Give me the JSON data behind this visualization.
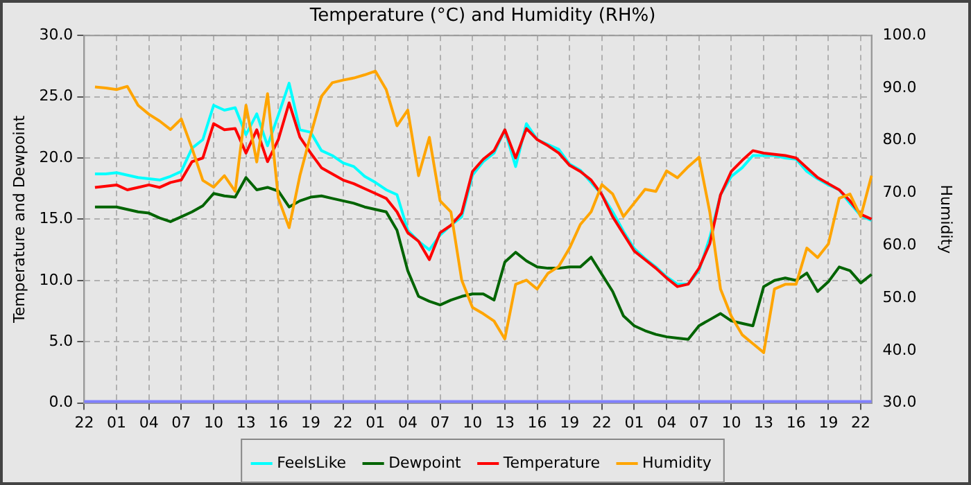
{
  "chart_data": {
    "type": "line",
    "title": "Temperature (°C) and Humidity (RH%)",
    "ylabel": "Temperature and Dewpoint",
    "y2label": "Humidity",
    "categories": [
      "22",
      null,
      null,
      "01",
      null,
      null,
      "04",
      null,
      null,
      "07",
      null,
      null,
      "10",
      null,
      null,
      "13",
      null,
      null,
      "16",
      null,
      null,
      "19",
      null,
      null,
      "22",
      null,
      null,
      "01",
      null,
      null,
      "04",
      null,
      null,
      "07",
      null,
      null,
      "10",
      null,
      null,
      "13",
      null,
      null,
      "16",
      null,
      null,
      "19",
      null,
      null,
      "22",
      null,
      null,
      "01",
      null,
      null,
      "04",
      null,
      null,
      "07",
      null,
      null,
      "10",
      null,
      null,
      "13",
      null,
      null,
      "16",
      null,
      null,
      "19",
      null,
      null,
      "22",
      null
    ],
    "ylim": [
      0,
      30
    ],
    "yticks": [
      {
        "value": 0,
        "label": "0.0"
      },
      {
        "value": 5,
        "label": "5.0"
      },
      {
        "value": 10,
        "label": "10.0"
      },
      {
        "value": 15,
        "label": "15.0"
      },
      {
        "value": 20,
        "label": "20.0"
      },
      {
        "value": 25,
        "label": "25.0"
      },
      {
        "value": 30,
        "label": "30.0"
      }
    ],
    "y2lim": [
      30,
      100
    ],
    "y2ticks": [
      {
        "value": 30,
        "label": "30.0"
      },
      {
        "value": 40,
        "label": "40.0"
      },
      {
        "value": 50,
        "label": "50.0"
      },
      {
        "value": 60,
        "label": "60.0"
      },
      {
        "value": 70,
        "label": "70.0"
      },
      {
        "value": 80,
        "label": "80.0"
      },
      {
        "value": 90,
        "label": "90.0"
      },
      {
        "value": 100,
        "label": "100.0"
      }
    ],
    "grid": true,
    "legend": "bottom",
    "marker": "none",
    "line_style": "solid",
    "ref_lines": [
      {
        "axis": "y",
        "value": 0,
        "color": "#8080ff"
      }
    ],
    "series": [
      {
        "name": "FeelsLike",
        "color": "#00ffff",
        "values": [
          null,
          18.7,
          18.7,
          18.8,
          18.6,
          18.4,
          18.3,
          18.2,
          18.5,
          18.9,
          20.8,
          21.5,
          24.3,
          23.9,
          24.1,
          21.9,
          23.6,
          21.0,
          23.5,
          26.1,
          22.3,
          22.1,
          20.6,
          20.2,
          19.6,
          19.3,
          18.5,
          18.0,
          17.4,
          17.0,
          14.1,
          13.2,
          12.5,
          13.7,
          14.5,
          15.2,
          18.6,
          19.7,
          20.4,
          22.3,
          19.3,
          22.8,
          21.5,
          21.1,
          20.7,
          19.5,
          19.0,
          18.0,
          17.0,
          15.6,
          14.0,
          12.6,
          11.8,
          11.1,
          10.3,
          9.7,
          9.7,
          10.8,
          13.5,
          17.0,
          18.5,
          19.2,
          20.2,
          20.2,
          20.2,
          20.0,
          19.9,
          18.9,
          18.3,
          17.8,
          17.4,
          16.3,
          15.3,
          14.9
        ]
      },
      {
        "name": "Dewpoint",
        "color": "#006400",
        "values": [
          null,
          16.0,
          16.0,
          16.0,
          15.8,
          15.6,
          15.5,
          15.1,
          14.8,
          15.2,
          15.6,
          16.1,
          17.1,
          16.9,
          16.8,
          18.4,
          17.4,
          17.6,
          17.3,
          16.0,
          16.5,
          16.8,
          16.9,
          16.7,
          16.5,
          16.3,
          16.0,
          15.8,
          15.6,
          14.1,
          10.8,
          8.7,
          8.3,
          8.0,
          8.4,
          8.7,
          8.9,
          8.9,
          8.4,
          11.5,
          12.3,
          11.6,
          11.1,
          11.0,
          11.0,
          11.1,
          11.1,
          11.9,
          10.5,
          9.1,
          7.1,
          6.3,
          5.9,
          5.6,
          5.4,
          5.3,
          5.2,
          6.3,
          6.8,
          7.3,
          6.7,
          6.5,
          6.3,
          9.5,
          10.0,
          10.2,
          10.0,
          10.6,
          9.1,
          9.9,
          11.1,
          10.8,
          9.8,
          10.5
        ]
      },
      {
        "name": "Temperature",
        "color": "#ff0000",
        "values": [
          null,
          17.6,
          17.7,
          17.8,
          17.4,
          17.6,
          17.8,
          17.6,
          18.0,
          18.2,
          19.7,
          20.0,
          22.8,
          22.3,
          22.4,
          20.4,
          22.3,
          19.7,
          21.5,
          24.5,
          21.7,
          20.4,
          19.2,
          18.7,
          18.2,
          17.9,
          17.5,
          17.1,
          16.7,
          15.6,
          13.9,
          13.2,
          11.7,
          13.9,
          14.5,
          15.5,
          18.9,
          19.9,
          20.6,
          22.3,
          20.0,
          22.4,
          21.5,
          21.0,
          20.4,
          19.4,
          18.9,
          18.2,
          17.0,
          15.2,
          13.8,
          12.4,
          11.7,
          11.0,
          10.2,
          9.5,
          9.7,
          11.0,
          13.0,
          17.0,
          18.9,
          19.8,
          20.6,
          20.4,
          20.3,
          20.2,
          20.0,
          19.2,
          18.4,
          17.9,
          17.4,
          16.5,
          15.4,
          15.0
        ]
      },
      {
        "name": "Humidity",
        "color": "#ffa500",
        "axis": "y2",
        "values": [
          null,
          90.2,
          90.0,
          89.7,
          90.3,
          86.7,
          85.0,
          83.7,
          82.1,
          84.1,
          78.5,
          72.4,
          71.1,
          73.3,
          70.3,
          86.7,
          75.9,
          88.9,
          69.0,
          63.4,
          73.3,
          81.1,
          88.4,
          91.0,
          91.5,
          91.9,
          92.5,
          93.2,
          89.7,
          82.8,
          85.8,
          73.3,
          80.6,
          68.5,
          66.4,
          53.4,
          48.2,
          47.0,
          45.6,
          42.2,
          52.6,
          53.4,
          51.7,
          54.7,
          56.0,
          59.5,
          64.0,
          66.4,
          71.6,
          69.8,
          65.5,
          68.1,
          70.7,
          70.3,
          74.2,
          72.9,
          75.0,
          76.8,
          66.4,
          51.7,
          46.5,
          43.0,
          41.3,
          39.6,
          51.7,
          52.6,
          52.6,
          59.5,
          57.7,
          60.3,
          69.0,
          69.8,
          65.5,
          73.3
        ]
      }
    ]
  }
}
